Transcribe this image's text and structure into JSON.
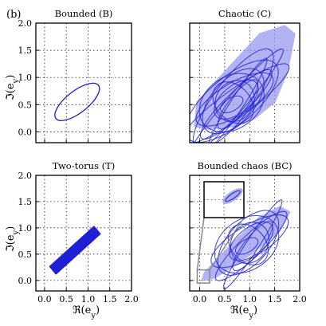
{
  "figure_label": "(b)",
  "panel_titles": {
    "top_left": "Bounded (B)",
    "top_right": "Chaotic (C)",
    "bottom_left": "Two-torus (T)",
    "bottom_right": "Bounded chaos (BC)"
  },
  "axis_labels": {
    "x": "ℜ(e_y)",
    "y": "ℑ(e_y)"
  },
  "colors": {
    "trajectory": "#1f1fd6",
    "cloud": "#9a9af0",
    "inset_frame": "#000000",
    "zoom_box": "#888888"
  },
  "chart_data": [
    {
      "type": "line",
      "title": "Bounded (B)",
      "xlim": [
        -0.2,
        2.0
      ],
      "ylim": [
        -0.2,
        2.0
      ],
      "xticks": [],
      "yticks": [
        "0.0",
        "0.5",
        "1.0",
        "1.5",
        "2.0"
      ],
      "grid": true,
      "series": [
        {
          "kind": "ellipse",
          "center": [
            0.75,
            0.55
          ],
          "semi_major": 0.62,
          "semi_minor": 0.2,
          "angle_deg": 38
        }
      ]
    },
    {
      "type": "line",
      "title": "Chaotic (C)",
      "xlim": [
        -0.2,
        2.0
      ],
      "ylim": [
        -0.2,
        2.0
      ],
      "xticks": [],
      "yticks": [],
      "grid": true,
      "series": [
        {
          "kind": "cloud",
          "outline": [
            [
              -0.1,
              0.1
            ],
            [
              0.2,
              0.05
            ],
            [
              0.7,
              0.1
            ],
            [
              1.1,
              0.25
            ],
            [
              1.5,
              0.55
            ],
            [
              1.75,
              1.1
            ],
            [
              1.9,
              1.8
            ],
            [
              1.7,
              1.95
            ],
            [
              1.2,
              1.8
            ],
            [
              0.8,
              1.4
            ],
            [
              0.3,
              0.9
            ],
            [
              -0.05,
              0.55
            ]
          ]
        },
        {
          "kind": "orbits",
          "center": [
            0.7,
            0.55
          ],
          "count": 14
        }
      ]
    },
    {
      "type": "line",
      "title": "Two-torus (T)",
      "xlim": [
        -0.2,
        2.0
      ],
      "ylim": [
        -0.2,
        2.0
      ],
      "xticks": [
        "0.0",
        "0.5",
        "1.0",
        "1.5",
        "2.0"
      ],
      "yticks": [
        "0.0",
        "0.5",
        "1.0",
        "1.5",
        "2.0"
      ],
      "grid": true,
      "series": [
        {
          "kind": "band",
          "from": [
            0.2,
            0.2
          ],
          "to": [
            1.2,
            0.95
          ],
          "width": 0.14
        }
      ]
    },
    {
      "type": "line",
      "title": "Bounded chaos (BC)",
      "xlim": [
        -0.2,
        2.0
      ],
      "ylim": [
        -0.2,
        2.0
      ],
      "xticks": [
        "0.0",
        "0.5",
        "1.0",
        "1.5",
        "2.0"
      ],
      "yticks": [],
      "grid": true,
      "series": [
        {
          "kind": "cloud",
          "outline": [
            [
              0.05,
              0.0
            ],
            [
              0.3,
              0.05
            ],
            [
              0.8,
              0.35
            ],
            [
              1.3,
              0.7
            ],
            [
              1.6,
              0.95
            ],
            [
              1.8,
              1.3
            ],
            [
              1.6,
              1.4
            ],
            [
              1.2,
              1.2
            ],
            [
              0.7,
              0.75
            ],
            [
              0.35,
              0.4
            ],
            [
              0.1,
              0.15
            ]
          ]
        },
        {
          "kind": "orbits",
          "center": [
            1.0,
            0.7
          ],
          "count": 10
        },
        {
          "kind": "zoom_box",
          "xrange": [
            -0.05,
            0.2
          ],
          "yrange": [
            -0.05,
            0.2
          ]
        }
      ]
    }
  ]
}
